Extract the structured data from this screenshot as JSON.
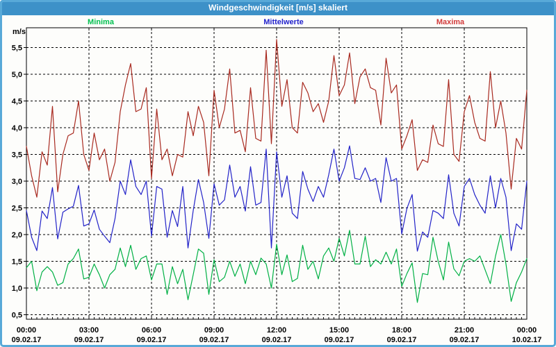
{
  "window": {
    "title": "Windgeschwindigkeit [m/s] skaliert"
  },
  "legend": {
    "minima": {
      "label": "Minima",
      "color": "#00c050"
    },
    "mittelwerte": {
      "label": "Mittelwerte",
      "color": "#2222cc"
    },
    "maxima": {
      "label": "Maxima",
      "color": "#d23b3b"
    }
  },
  "axes": {
    "y_unit": "m/s",
    "y_ticks": [
      {
        "label": "5,5",
        "value": 5.5
      },
      {
        "label": "5,0",
        "value": 5.0
      },
      {
        "label": "4,5",
        "value": 4.5
      },
      {
        "label": "4,0",
        "value": 4.0
      },
      {
        "label": "3,5",
        "value": 3.5
      },
      {
        "label": "3,0",
        "value": 3.0
      },
      {
        "label": "2,5",
        "value": 2.5
      },
      {
        "label": "2,0",
        "value": 2.0
      },
      {
        "label": "1,5",
        "value": 1.5
      },
      {
        "label": "1,0",
        "value": 1.0
      },
      {
        "label": "0,5",
        "value": 0.5
      }
    ],
    "x_ticks": [
      {
        "time": "00:00",
        "date": "09.02.17"
      },
      {
        "time": "03:00",
        "date": "09.02.17"
      },
      {
        "time": "06:00",
        "date": "09.02.17"
      },
      {
        "time": "09:00",
        "date": "09.02.17"
      },
      {
        "time": "12:00",
        "date": "09.02.17"
      },
      {
        "time": "15:00",
        "date": "09.02.17"
      },
      {
        "time": "18:00",
        "date": "09.02.17"
      },
      {
        "time": "21:00",
        "date": "09.02.17"
      },
      {
        "time": "00:00",
        "date": "10.02.17"
      }
    ]
  },
  "chart_data": {
    "type": "line",
    "title": "Windgeschwindigkeit [m/s] skaliert",
    "ylabel": "m/s",
    "ylim": [
      0.5,
      5.77
    ],
    "grid": true,
    "x_start": "09.02.17 00:00",
    "x_end": "10.02.17 00:00",
    "x_step_minutes": 15,
    "series": [
      {
        "name": "Minima",
        "color": "#00b044",
        "values": [
          1.38,
          1.5,
          0.95,
          1.3,
          1.4,
          1.3,
          1.05,
          1.1,
          1.45,
          1.55,
          1.73,
          1.17,
          1.2,
          1.45,
          1.25,
          1.0,
          1.25,
          1.35,
          1.75,
          1.4,
          1.8,
          1.35,
          1.55,
          1.6,
          1.15,
          1.45,
          1.45,
          0.88,
          1.4,
          1.08,
          1.35,
          0.78,
          1.25,
          1.73,
          1.65,
          0.88,
          1.53,
          1.12,
          1.2,
          1.5,
          1.22,
          1.45,
          1.08,
          1.5,
          1.25,
          1.56,
          1.45,
          1.0,
          1.82,
          1.25,
          1.62,
          1.12,
          1.18,
          1.8,
          1.35,
          1.5,
          1.17,
          1.6,
          1.75,
          1.5,
          1.93,
          1.6,
          2.08,
          1.45,
          1.45,
          1.97,
          1.4,
          1.53,
          1.45,
          1.67,
          1.45,
          1.73,
          1.03,
          1.27,
          1.47,
          0.73,
          1.27,
          1.25,
          1.95,
          1.5,
          1.15,
          1.86,
          1.36,
          1.23,
          1.5,
          1.55,
          1.5,
          1.6,
          1.34,
          1.08,
          1.6,
          2.0,
          1.45,
          0.75,
          1.1,
          1.3,
          1.55
        ]
      },
      {
        "name": "Mittelwerte",
        "color": "#2222c8",
        "values": [
          2.45,
          1.95,
          1.7,
          2.44,
          2.3,
          2.88,
          1.92,
          2.42,
          2.48,
          2.53,
          2.92,
          2.16,
          2.2,
          2.46,
          2.1,
          1.97,
          1.85,
          2.3,
          3.0,
          2.75,
          3.4,
          2.9,
          2.75,
          3.0,
          1.97,
          2.9,
          2.85,
          1.95,
          2.45,
          2.15,
          2.9,
          1.75,
          2.45,
          3.03,
          2.6,
          1.93,
          2.95,
          2.55,
          2.65,
          3.3,
          2.7,
          2.9,
          2.44,
          3.27,
          2.55,
          2.6,
          3.6,
          1.75,
          3.55,
          2.7,
          3.1,
          2.4,
          2.3,
          3.18,
          2.85,
          2.62,
          2.9,
          2.7,
          3.12,
          3.6,
          3.0,
          3.25,
          3.66,
          3.05,
          3.03,
          3.25,
          3.0,
          3.05,
          2.6,
          3.44,
          3.0,
          3.05,
          2.01,
          2.49,
          2.75,
          1.69,
          2.05,
          1.95,
          2.45,
          2.4,
          2.3,
          3.12,
          2.4,
          2.16,
          2.9,
          3.05,
          2.75,
          2.55,
          2.4,
          3.1,
          2.5,
          3.05,
          2.7,
          1.7,
          2.2,
          2.1,
          3.0
        ]
      },
      {
        "name": "Maxima",
        "color": "#a8291f",
        "values": [
          3.65,
          3.1,
          2.7,
          3.55,
          3.3,
          4.4,
          2.8,
          3.5,
          3.85,
          3.9,
          4.5,
          3.5,
          3.2,
          3.9,
          3.4,
          3.6,
          3.0,
          3.35,
          4.3,
          4.8,
          5.2,
          4.3,
          4.35,
          4.75,
          3.05,
          4.35,
          3.4,
          3.6,
          3.1,
          3.5,
          3.45,
          4.3,
          3.85,
          4.4,
          4.1,
          3.1,
          4.7,
          4.0,
          4.35,
          5.1,
          3.9,
          3.95,
          3.55,
          4.75,
          3.8,
          3.75,
          5.45,
          3.7,
          5.65,
          4.4,
          4.9,
          4.0,
          3.9,
          4.85,
          4.65,
          4.3,
          4.45,
          4.1,
          4.5,
          5.35,
          4.6,
          4.8,
          5.4,
          4.45,
          4.95,
          5.1,
          4.75,
          4.7,
          4.05,
          5.3,
          4.65,
          4.8,
          3.6,
          3.85,
          4.15,
          3.2,
          3.4,
          3.35,
          4.05,
          3.7,
          3.65,
          4.9,
          3.5,
          3.37,
          4.3,
          4.6,
          4.1,
          3.8,
          3.75,
          5.05,
          4.0,
          4.5,
          3.9,
          2.85,
          3.8,
          3.6,
          4.7
        ]
      }
    ]
  }
}
